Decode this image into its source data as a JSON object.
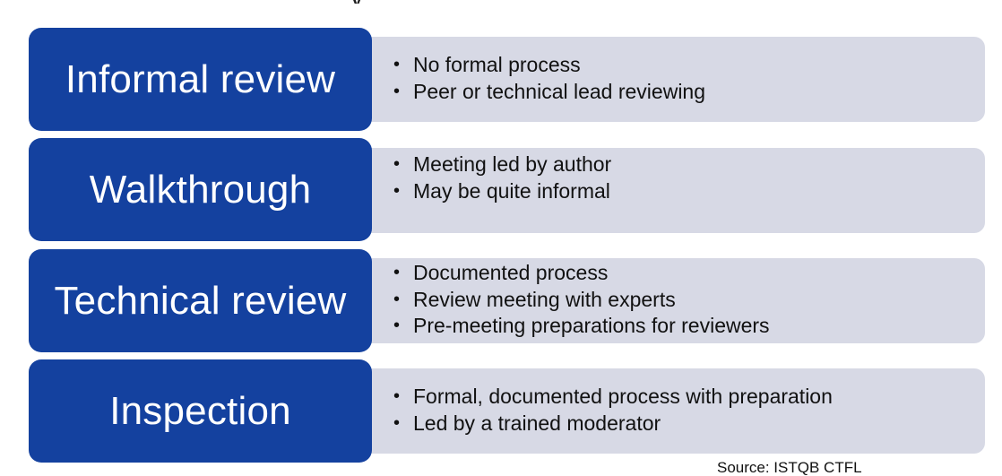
{
  "title_fragment": "y",
  "rows": [
    {
      "label": "Informal review",
      "bullets": [
        "No formal process",
        "Peer or technical lead reviewing"
      ]
    },
    {
      "label": "Walkthrough",
      "bullets": [
        "Meeting led by author",
        "May be quite informal"
      ]
    },
    {
      "label": "Technical review",
      "bullets": [
        "Documented process",
        "Review meeting with experts",
        "Pre-meeting preparations for reviewers"
      ]
    },
    {
      "label": "Inspection",
      "bullets": [
        "Formal, documented process with preparation",
        "Led by a trained moderator"
      ]
    }
  ],
  "source": "Source: ISTQB CTFL",
  "colors": {
    "label_bg": "#14419f",
    "detail_bg": "#d7d9e5",
    "label_text": "#ffffff"
  }
}
